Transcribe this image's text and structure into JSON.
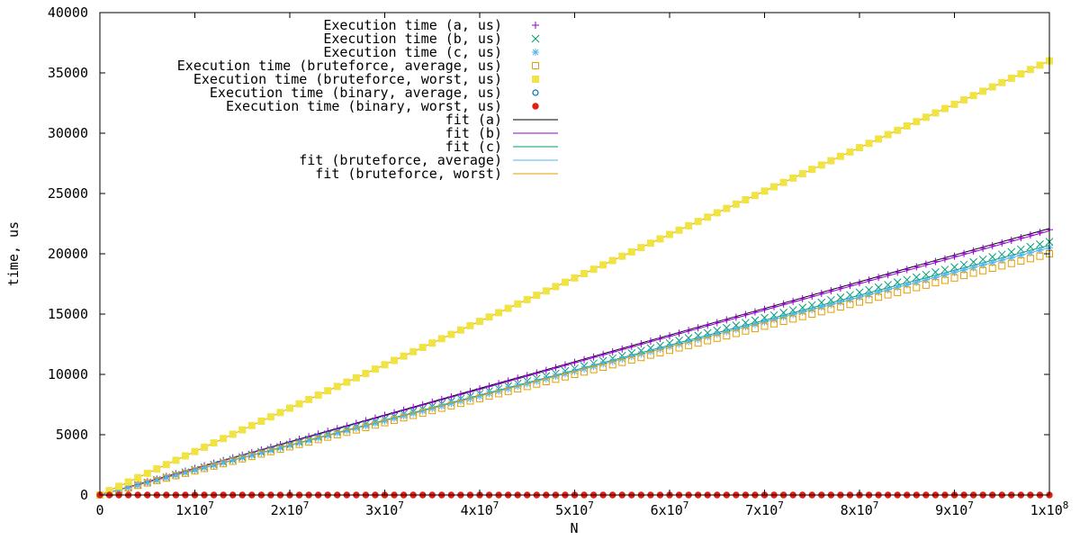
{
  "chart_data": {
    "type": "scatter",
    "xlabel": "N",
    "ylabel": "time, us",
    "xlim": [
      0,
      100000000
    ],
    "ylim": [
      0,
      40000
    ],
    "x_ticks": [
      {
        "base": "0",
        "exp": ""
      },
      {
        "base": "1x10",
        "exp": "7"
      },
      {
        "base": "2x10",
        "exp": "7"
      },
      {
        "base": "3x10",
        "exp": "7"
      },
      {
        "base": "4x10",
        "exp": "7"
      },
      {
        "base": "5x10",
        "exp": "7"
      },
      {
        "base": "6x10",
        "exp": "7"
      },
      {
        "base": "7x10",
        "exp": "7"
      },
      {
        "base": "8x10",
        "exp": "7"
      },
      {
        "base": "9x10",
        "exp": "7"
      },
      {
        "base": "1x10",
        "exp": "8"
      }
    ],
    "y_ticks": [
      "0",
      "5000",
      "10000",
      "15000",
      "20000",
      "25000",
      "30000",
      "35000",
      "40000"
    ],
    "legend_position": "top-left",
    "grid": false,
    "series": [
      {
        "name": "Execution time (a, us)",
        "kind": "points",
        "marker": "plus",
        "color": "#9400d3",
        "x_start": 0,
        "x_step": 1000000,
        "y": [
          0,
          220,
          440,
          660,
          880,
          1100,
          1320,
          1540,
          1760,
          1980,
          2200,
          2420,
          2640,
          2860,
          3080,
          3300,
          3520,
          3740,
          3960,
          4180,
          4400,
          4620,
          4840,
          5060,
          5280,
          5500,
          5720,
          5940,
          6160,
          6380,
          6600,
          6820,
          7040,
          7260,
          7480,
          7700,
          7920,
          8140,
          8360,
          8580,
          8800,
          9020,
          9240,
          9460,
          9680,
          9900,
          10120,
          10340,
          10560,
          10780,
          11000,
          11220,
          11440,
          11660,
          11880,
          12100,
          12320,
          12540,
          12760,
          12980,
          13200,
          13420,
          13640,
          13860,
          14080,
          14300,
          14520,
          14740,
          14960,
          15180,
          15400,
          15620,
          15840,
          16060,
          16280,
          16500,
          16720,
          16940,
          17160,
          17380,
          17600,
          17820,
          18040,
          18260,
          18480,
          18700,
          18920,
          19140,
          19360,
          19580,
          19800,
          20020,
          20240,
          20460,
          20680,
          20900,
          21120,
          21340,
          21560,
          21780,
          22000
        ]
      },
      {
        "name": "Execution time (b, us)",
        "kind": "points",
        "marker": "cross",
        "color": "#009e73",
        "x_start": 0,
        "x_step": 1000000,
        "y": [
          0,
          210,
          420,
          630,
          840,
          1050,
          1260,
          1470,
          1680,
          1890,
          2100,
          2310,
          2520,
          2730,
          2940,
          3150,
          3360,
          3570,
          3780,
          3990,
          4200,
          4410,
          4620,
          4830,
          5040,
          5250,
          5460,
          5670,
          5880,
          6090,
          6300,
          6510,
          6720,
          6930,
          7140,
          7350,
          7560,
          7770,
          7980,
          8190,
          8400,
          8610,
          8820,
          9030,
          9240,
          9450,
          9660,
          9870,
          10080,
          10290,
          10500,
          10710,
          10920,
          11130,
          11340,
          11550,
          11760,
          11970,
          12180,
          12390,
          12600,
          12810,
          13020,
          13230,
          13440,
          13650,
          13860,
          14070,
          14280,
          14490,
          14700,
          14910,
          15120,
          15330,
          15540,
          15750,
          15960,
          16170,
          16380,
          16590,
          16800,
          17010,
          17220,
          17430,
          17640,
          17850,
          18060,
          18270,
          18480,
          18690,
          18900,
          19110,
          19320,
          19530,
          19740,
          19950,
          20160,
          20370,
          20580,
          20790,
          21000
        ]
      },
      {
        "name": "Execution time (c, us)",
        "kind": "points",
        "marker": "star",
        "color": "#56b4e9",
        "x_start": 0,
        "x_step": 1000000,
        "y": [
          0,
          205,
          410,
          615,
          820,
          1025,
          1230,
          1435,
          1640,
          1845,
          2050,
          2255,
          2460,
          2665,
          2870,
          3075,
          3280,
          3485,
          3690,
          3895,
          4100,
          4305,
          4510,
          4715,
          4920,
          5125,
          5330,
          5535,
          5740,
          5945,
          6150,
          6355,
          6560,
          6765,
          6970,
          7175,
          7380,
          7585,
          7790,
          7995,
          8200,
          8405,
          8610,
          8815,
          9020,
          9225,
          9430,
          9635,
          9840,
          10045,
          10250,
          10455,
          10660,
          10865,
          11070,
          11275,
          11480,
          11685,
          11890,
          12095,
          12300,
          12505,
          12710,
          12915,
          13120,
          13325,
          13530,
          13735,
          13940,
          14145,
          14350,
          14555,
          14760,
          14965,
          15170,
          15375,
          15580,
          15785,
          15990,
          16195,
          16400,
          16605,
          16810,
          17015,
          17220,
          17425,
          17630,
          17835,
          18040,
          18245,
          18450,
          18655,
          18860,
          19065,
          19270,
          19475,
          19680,
          19885,
          20090,
          20295,
          20500
        ]
      },
      {
        "name": "Execution time (bruteforce, average, us)",
        "kind": "points",
        "marker": "open-square",
        "color": "#e69f00",
        "x_start": 0,
        "x_step": 1000000,
        "y": [
          0,
          200,
          400,
          600,
          800,
          1000,
          1200,
          1400,
          1600,
          1800,
          2000,
          2200,
          2400,
          2600,
          2800,
          3000,
          3200,
          3400,
          3600,
          3800,
          4000,
          4200,
          4400,
          4600,
          4800,
          5000,
          5200,
          5400,
          5600,
          5800,
          6000,
          6200,
          6400,
          6600,
          6800,
          7000,
          7200,
          7400,
          7600,
          7800,
          8000,
          8200,
          8400,
          8600,
          8800,
          9000,
          9200,
          9400,
          9600,
          9800,
          10000,
          10200,
          10400,
          10600,
          10800,
          11000,
          11200,
          11400,
          11600,
          11800,
          12000,
          12200,
          12400,
          12600,
          12800,
          13000,
          13200,
          13400,
          13600,
          13800,
          14000,
          14200,
          14400,
          14600,
          14800,
          15000,
          15200,
          15400,
          15600,
          15800,
          16000,
          16200,
          16400,
          16600,
          16800,
          17000,
          17200,
          17400,
          17600,
          17800,
          18000,
          18200,
          18400,
          18600,
          18800,
          19000,
          19200,
          19400,
          19600,
          19800,
          20000
        ]
      },
      {
        "name": "Execution time (bruteforce, worst, us)",
        "kind": "points",
        "marker": "filled-square",
        "color": "#f0e442",
        "x_start": 0,
        "x_step": 1000000,
        "y": [
          0,
          360,
          720,
          1080,
          1440,
          1800,
          2160,
          2520,
          2880,
          3240,
          3600,
          3960,
          4320,
          4680,
          5040,
          5400,
          5760,
          6120,
          6480,
          6840,
          7200,
          7560,
          7920,
          8280,
          8640,
          9000,
          9360,
          9720,
          10080,
          10440,
          10800,
          11160,
          11520,
          11880,
          12240,
          12600,
          12960,
          13320,
          13680,
          14040,
          14400,
          14760,
          15120,
          15480,
          15840,
          16200,
          16560,
          16920,
          17280,
          17640,
          18000,
          18360,
          18720,
          19080,
          19440,
          19800,
          20160,
          20520,
          20880,
          21240,
          21600,
          21960,
          22320,
          22680,
          23040,
          23400,
          23760,
          24120,
          24480,
          24840,
          25200,
          25560,
          25920,
          26280,
          26640,
          27000,
          27360,
          27720,
          28080,
          28440,
          28800,
          29160,
          29520,
          29880,
          30240,
          30600,
          30960,
          31320,
          31680,
          32040,
          32400,
          32760,
          33120,
          33480,
          33840,
          34200,
          34560,
          34920,
          35280,
          35640,
          36000
        ]
      },
      {
        "name": "Execution time (binary, average, us)",
        "kind": "points",
        "marker": "open-circle",
        "color": "#0072b2",
        "x_start": 0,
        "x_step": 1000000,
        "y": [
          0,
          0,
          0,
          0,
          0,
          0,
          0,
          0,
          0,
          0,
          0,
          0,
          0,
          0,
          0,
          0,
          0,
          0,
          0,
          0,
          0,
          0,
          0,
          0,
          0,
          0,
          0,
          0,
          0,
          0,
          0,
          0,
          0,
          0,
          0,
          0,
          0,
          0,
          0,
          0,
          0,
          0,
          0,
          0,
          0,
          0,
          0,
          0,
          0,
          0,
          0,
          0,
          0,
          0,
          0,
          0,
          0,
          0,
          0,
          0,
          0,
          0,
          0,
          0,
          0,
          0,
          0,
          0,
          0,
          0,
          0,
          0,
          0,
          0,
          0,
          0,
          0,
          0,
          0,
          0,
          0,
          0,
          0,
          0,
          0,
          0,
          0,
          0,
          0,
          0,
          0,
          0,
          0,
          0,
          0,
          0,
          0,
          0,
          0,
          0,
          0
        ]
      },
      {
        "name": "Execution time (binary, worst, us)",
        "kind": "points",
        "marker": "filled-circle",
        "color": "#e51e10",
        "x_start": 0,
        "x_step": 1000000,
        "y": [
          0,
          0,
          0,
          0,
          0,
          0,
          0,
          0,
          0,
          0,
          0,
          0,
          0,
          0,
          0,
          0,
          0,
          0,
          0,
          0,
          0,
          0,
          0,
          0,
          0,
          0,
          0,
          0,
          0,
          0,
          0,
          0,
          0,
          0,
          0,
          0,
          0,
          0,
          0,
          0,
          0,
          0,
          0,
          0,
          0,
          0,
          0,
          0,
          0,
          0,
          0,
          0,
          0,
          0,
          0,
          0,
          0,
          0,
          0,
          0,
          0,
          0,
          0,
          0,
          0,
          0,
          0,
          0,
          0,
          0,
          0,
          0,
          0,
          0,
          0,
          0,
          0,
          0,
          0,
          0,
          0,
          0,
          0,
          0,
          0,
          0,
          0,
          0,
          0,
          0,
          0,
          0,
          0,
          0,
          0,
          0,
          0,
          0,
          0,
          0,
          0
        ]
      },
      {
        "name": "fit (a)",
        "kind": "line",
        "color": "#000000",
        "x": [
          0,
          100000000
        ],
        "y": [
          0,
          22100
        ]
      },
      {
        "name": "fit (b)",
        "kind": "line",
        "color": "#9400d3",
        "x": [
          0,
          100000000
        ],
        "y": [
          0,
          21900
        ]
      },
      {
        "name": "fit (c)",
        "kind": "line",
        "color": "#009e73",
        "x": [
          0,
          100000000
        ],
        "y": [
          0,
          20700
        ]
      },
      {
        "name": "fit (bruteforce, average)",
        "kind": "line",
        "color": "#56b4e9",
        "x": [
          0,
          100000000
        ],
        "y": [
          0,
          20500
        ]
      },
      {
        "name": "fit (bruteforce, worst)",
        "kind": "line",
        "color": "#e69f00",
        "x": [
          0,
          100000000
        ],
        "y": [
          0,
          36000
        ]
      }
    ]
  }
}
